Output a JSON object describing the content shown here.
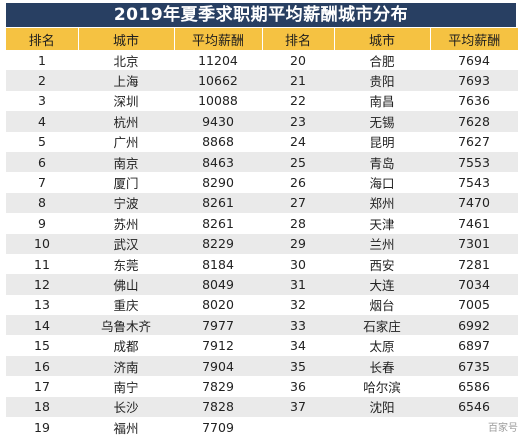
{
  "title": "2019年夏季求职期平均薪酬城市分布",
  "headers": [
    "排名",
    "城市",
    "平均薪酬",
    "排名",
    "城市",
    "平均薪酬"
  ],
  "left": [
    {
      "rank": "1",
      "city": "北京",
      "salary": "11204"
    },
    {
      "rank": "2",
      "city": "上海",
      "salary": "10662"
    },
    {
      "rank": "3",
      "city": "深圳",
      "salary": "10088"
    },
    {
      "rank": "4",
      "city": "杭州",
      "salary": "9430"
    },
    {
      "rank": "5",
      "city": "广州",
      "salary": "8868"
    },
    {
      "rank": "6",
      "city": "南京",
      "salary": "8463"
    },
    {
      "rank": "7",
      "city": "厦门",
      "salary": "8290"
    },
    {
      "rank": "8",
      "city": "宁波",
      "salary": "8261"
    },
    {
      "rank": "9",
      "city": "苏州",
      "salary": "8261"
    },
    {
      "rank": "10",
      "city": "武汉",
      "salary": "8229"
    },
    {
      "rank": "11",
      "city": "东莞",
      "salary": "8184"
    },
    {
      "rank": "12",
      "city": "佛山",
      "salary": "8049"
    },
    {
      "rank": "13",
      "city": "重庆",
      "salary": "8020"
    },
    {
      "rank": "14",
      "city": "乌鲁木齐",
      "salary": "7977"
    },
    {
      "rank": "15",
      "city": "成都",
      "salary": "7912"
    },
    {
      "rank": "16",
      "city": "济南",
      "salary": "7904"
    },
    {
      "rank": "17",
      "city": "南宁",
      "salary": "7829"
    },
    {
      "rank": "18",
      "city": "长沙",
      "salary": "7828"
    },
    {
      "rank": "19",
      "city": "福州",
      "salary": "7709"
    }
  ],
  "right": [
    {
      "rank": "20",
      "city": "合肥",
      "salary": "7694"
    },
    {
      "rank": "21",
      "city": "贵阳",
      "salary": "7693"
    },
    {
      "rank": "22",
      "city": "南昌",
      "salary": "7636"
    },
    {
      "rank": "23",
      "city": "无锡",
      "salary": "7628"
    },
    {
      "rank": "24",
      "city": "昆明",
      "salary": "7627"
    },
    {
      "rank": "25",
      "city": "青岛",
      "salary": "7553"
    },
    {
      "rank": "26",
      "city": "海口",
      "salary": "7543"
    },
    {
      "rank": "27",
      "city": "郑州",
      "salary": "7470"
    },
    {
      "rank": "28",
      "city": "天津",
      "salary": "7461"
    },
    {
      "rank": "29",
      "city": "兰州",
      "salary": "7301"
    },
    {
      "rank": "30",
      "city": "西安",
      "salary": "7281"
    },
    {
      "rank": "31",
      "city": "大连",
      "salary": "7034"
    },
    {
      "rank": "32",
      "city": "烟台",
      "salary": "7005"
    },
    {
      "rank": "33",
      "city": "石家庄",
      "salary": "6992"
    },
    {
      "rank": "34",
      "city": "太原",
      "salary": "6897"
    },
    {
      "rank": "35",
      "city": "长春",
      "salary": "6735"
    },
    {
      "rank": "36",
      "city": "哈尔滨",
      "salary": "6586"
    },
    {
      "rank": "37",
      "city": "沈阳",
      "salary": "6546"
    },
    {
      "rank": "",
      "city": "",
      "salary": ""
    }
  ],
  "watermark": "百家号",
  "colors": {
    "title_bg": "#283f62",
    "header_bg": "#f5c242",
    "row_alt": "#eaeaea"
  }
}
